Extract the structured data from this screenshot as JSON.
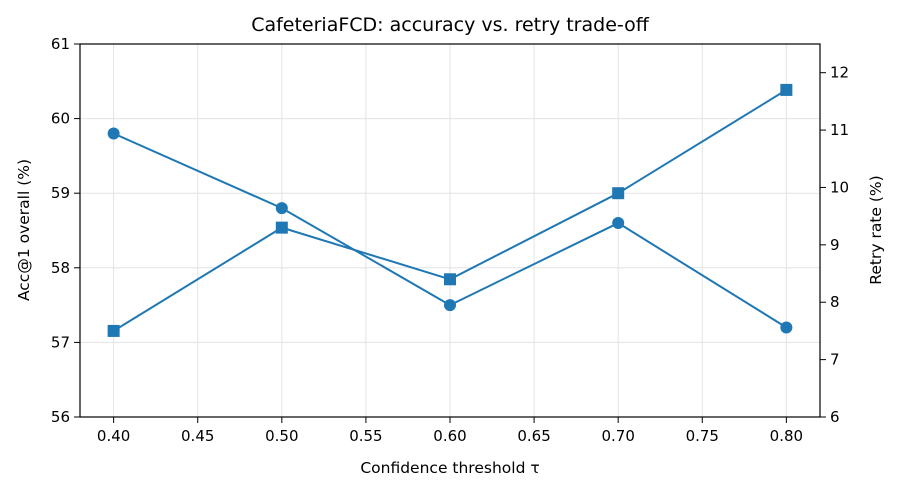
{
  "chart_data": {
    "type": "line",
    "title": "CafeteriaFCD: accuracy vs. retry trade-off",
    "xlabel": "Confidence threshold τ",
    "ylabel_left": "Acc@1 overall (%)",
    "ylabel_right": "Retry rate (%)",
    "x": [
      0.4,
      0.5,
      0.6,
      0.7,
      0.8
    ],
    "xlim": [
      0.38,
      0.82
    ],
    "xticks": [
      "0.40",
      "0.45",
      "0.50",
      "0.55",
      "0.60",
      "0.65",
      "0.70",
      "0.75",
      "0.80"
    ],
    "ylim_left": [
      56,
      61
    ],
    "yticks_left": [
      "56",
      "57",
      "58",
      "59",
      "60",
      "61"
    ],
    "ylim_right": [
      6,
      12.5
    ],
    "yticks_right": [
      "6",
      "7",
      "8",
      "9",
      "10",
      "11",
      "12"
    ],
    "grid": true,
    "color": "#1f77b4",
    "series": [
      {
        "axis": "left",
        "marker": "circle",
        "values": [
          59.8,
          58.8,
          57.5,
          58.6,
          57.2
        ]
      },
      {
        "axis": "right",
        "marker": "square",
        "values": [
          7.5,
          9.3,
          8.4,
          9.9,
          11.7
        ]
      }
    ]
  }
}
